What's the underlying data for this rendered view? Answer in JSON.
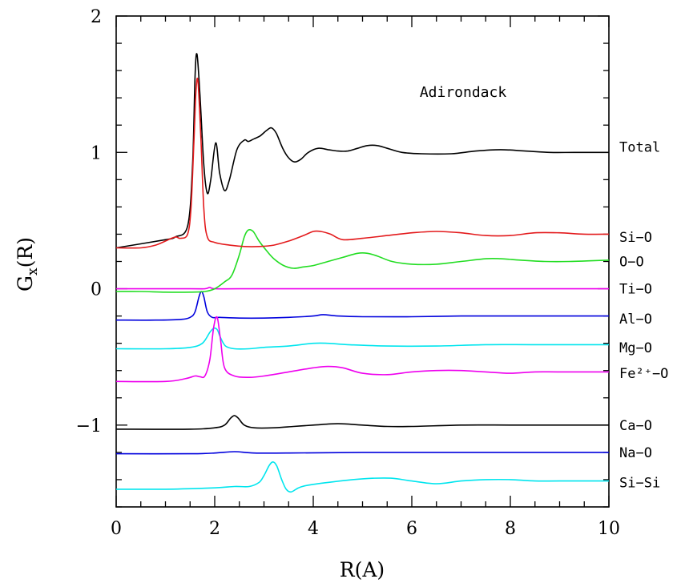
{
  "chart_data": {
    "type": "line",
    "title": "",
    "annotation": "Adirondack",
    "xlabel": "R(A)",
    "ylabel_main": "G",
    "ylabel_sub": "x",
    "ylabel_tail": "(R)",
    "xlim": [
      0,
      10
    ],
    "ylim": [
      -1.6,
      2.0
    ],
    "x_ticks": [
      0,
      2,
      4,
      6,
      8,
      10
    ],
    "y_ticks": [
      -1,
      0,
      1,
      2
    ],
    "x_tick_labels": [
      "0",
      "2",
      "4",
      "6",
      "8",
      "10"
    ],
    "y_tick_labels": [
      "−1",
      "0",
      "1",
      "2"
    ],
    "grid": false,
    "legend": "labels at right end of each curve",
    "series": [
      {
        "name": "Total",
        "color": "#000000",
        "label_y": 1.04,
        "x": [
          0,
          1.0,
          1.2,
          1.45,
          1.55,
          1.6,
          1.64,
          1.7,
          1.78,
          1.85,
          1.92,
          2.02,
          2.1,
          2.2,
          2.3,
          2.45,
          2.6,
          2.68,
          2.8,
          2.92,
          3.05,
          3.15,
          3.25,
          3.38,
          3.5,
          3.62,
          3.75,
          3.9,
          4.1,
          4.3,
          4.5,
          4.7,
          4.9,
          5.1,
          5.3,
          5.5,
          5.8,
          6.2,
          6.8,
          7.3,
          7.8,
          8.3,
          8.8,
          9.3,
          10
        ],
        "y": [
          0.3,
          0.36,
          0.38,
          0.46,
          0.9,
          1.55,
          1.72,
          1.42,
          0.9,
          0.7,
          0.8,
          1.07,
          0.85,
          0.72,
          0.8,
          1.02,
          1.09,
          1.08,
          1.1,
          1.12,
          1.16,
          1.18,
          1.14,
          1.03,
          0.96,
          0.93,
          0.95,
          1.0,
          1.03,
          1.02,
          1.01,
          1.01,
          1.03,
          1.05,
          1.05,
          1.03,
          1.0,
          0.99,
          0.99,
          1.01,
          1.02,
          1.01,
          1.0,
          1.0,
          1.0
        ]
      },
      {
        "name": "Si−O",
        "color": "#e31a1c",
        "label_y": 0.38,
        "x": [
          0,
          0.5,
          0.8,
          1.0,
          1.2,
          1.3,
          1.45,
          1.52,
          1.58,
          1.62,
          1.66,
          1.72,
          1.78,
          1.85,
          2.0,
          2.3,
          2.6,
          2.9,
          3.2,
          3.5,
          3.8,
          4.0,
          4.15,
          4.35,
          4.6,
          5.0,
          5.5,
          6.0,
          6.5,
          7.0,
          7.5,
          8.0,
          8.5,
          9.0,
          9.5,
          10
        ],
        "y": [
          0.3,
          0.3,
          0.32,
          0.35,
          0.38,
          0.37,
          0.4,
          0.6,
          1.1,
          1.45,
          1.52,
          1.1,
          0.58,
          0.38,
          0.34,
          0.32,
          0.31,
          0.31,
          0.32,
          0.35,
          0.39,
          0.42,
          0.42,
          0.4,
          0.36,
          0.37,
          0.39,
          0.41,
          0.42,
          0.41,
          0.39,
          0.39,
          0.41,
          0.41,
          0.4,
          0.4
        ]
      },
      {
        "name": "O−O",
        "color": "#22dd22",
        "label_y": 0.2,
        "x": [
          0,
          0.5,
          1.0,
          1.5,
          1.8,
          2.0,
          2.2,
          2.35,
          2.5,
          2.6,
          2.68,
          2.78,
          2.9,
          3.05,
          3.2,
          3.4,
          3.6,
          3.8,
          4.0,
          4.3,
          4.6,
          4.9,
          5.1,
          5.3,
          5.6,
          6.0,
          6.5,
          7.0,
          7.5,
          7.8,
          8.2,
          8.7,
          9.2,
          10
        ],
        "y": [
          -0.02,
          -0.02,
          -0.025,
          -0.025,
          -0.02,
          0.0,
          0.05,
          0.1,
          0.25,
          0.38,
          0.43,
          0.42,
          0.35,
          0.28,
          0.22,
          0.17,
          0.15,
          0.16,
          0.17,
          0.2,
          0.23,
          0.26,
          0.26,
          0.24,
          0.2,
          0.18,
          0.18,
          0.2,
          0.22,
          0.22,
          0.21,
          0.2,
          0.2,
          0.21
        ]
      },
      {
        "name": "Ti−O",
        "color": "#ee00ee",
        "label_y": 0.0,
        "x": [
          0,
          1.5,
          1.8,
          1.9,
          2.0,
          2.5,
          4.0,
          10
        ],
        "y": [
          0.0,
          0.0,
          0.0,
          0.01,
          0.0,
          0.0,
          0.0,
          0.0
        ]
      },
      {
        "name": "Al−O",
        "color": "#0000dd",
        "label_y": -0.22,
        "x": [
          0,
          0.8,
          1.3,
          1.5,
          1.6,
          1.68,
          1.73,
          1.78,
          1.85,
          1.95,
          2.1,
          2.5,
          3.0,
          3.5,
          4.0,
          4.2,
          4.5,
          5.0,
          6.0,
          7.0,
          8.0,
          9.0,
          10
        ],
        "y": [
          -0.23,
          -0.23,
          -0.225,
          -0.21,
          -0.17,
          -0.06,
          -0.02,
          -0.06,
          -0.17,
          -0.21,
          -0.21,
          -0.215,
          -0.215,
          -0.21,
          -0.2,
          -0.19,
          -0.2,
          -0.205,
          -0.205,
          -0.2,
          -0.2,
          -0.2,
          -0.2
        ]
      },
      {
        "name": "Mg−O",
        "color": "#00e5ee",
        "label_y": -0.43,
        "x": [
          0,
          1.0,
          1.5,
          1.75,
          1.9,
          1.98,
          2.05,
          2.12,
          2.22,
          2.4,
          2.7,
          3.0,
          3.5,
          4.0,
          4.3,
          4.7,
          5.5,
          6.5,
          7.5,
          8.5,
          10
        ],
        "y": [
          -0.44,
          -0.44,
          -0.43,
          -0.4,
          -0.32,
          -0.29,
          -0.3,
          -0.36,
          -0.42,
          -0.44,
          -0.44,
          -0.43,
          -0.42,
          -0.4,
          -0.4,
          -0.41,
          -0.42,
          -0.42,
          -0.41,
          -0.41,
          -0.41
        ]
      },
      {
        "name": "Fe²⁺−O",
        "color": "#ee00ee",
        "label_y": -0.62,
        "x": [
          0,
          1.0,
          1.4,
          1.6,
          1.7,
          1.8,
          1.9,
          1.98,
          2.05,
          2.12,
          2.2,
          2.4,
          2.7,
          3.0,
          3.5,
          4.0,
          4.3,
          4.6,
          5.0,
          5.5,
          6.0,
          6.5,
          7.0,
          7.5,
          8.0,
          8.5,
          9.0,
          10
        ],
        "y": [
          -0.68,
          -0.68,
          -0.66,
          -0.64,
          -0.645,
          -0.64,
          -0.52,
          -0.28,
          -0.21,
          -0.38,
          -0.58,
          -0.64,
          -0.65,
          -0.64,
          -0.61,
          -0.58,
          -0.57,
          -0.58,
          -0.62,
          -0.63,
          -0.61,
          -0.6,
          -0.6,
          -0.61,
          -0.62,
          -0.61,
          -0.61,
          -0.61
        ]
      },
      {
        "name": "Ca−O",
        "color": "#000000",
        "label_y": -1.0,
        "x": [
          0,
          1.5,
          2.0,
          2.2,
          2.32,
          2.4,
          2.48,
          2.6,
          2.8,
          3.2,
          3.6,
          4.0,
          4.5,
          5.0,
          5.5,
          6.0,
          7.0,
          8.0,
          9.0,
          10
        ],
        "y": [
          -1.03,
          -1.03,
          -1.02,
          -1.0,
          -0.95,
          -0.93,
          -0.95,
          -1.0,
          -1.02,
          -1.02,
          -1.01,
          -1.0,
          -0.99,
          -1.0,
          -1.01,
          -1.01,
          -1.0,
          -1.0,
          -1.0,
          -1.0
        ]
      },
      {
        "name": "Na−O",
        "color": "#0000dd",
        "label_y": -1.2,
        "x": [
          0,
          1.5,
          2.0,
          2.4,
          2.8,
          3.5,
          5.0,
          7.0,
          10
        ],
        "y": [
          -1.21,
          -1.21,
          -1.205,
          -1.195,
          -1.205,
          -1.205,
          -1.2,
          -1.2,
          -1.2
        ]
      },
      {
        "name": "Si−Si",
        "color": "#00e5ee",
        "label_y": -1.42,
        "x": [
          0,
          1.0,
          2.0,
          2.4,
          2.7,
          2.9,
          3.0,
          3.1,
          3.18,
          3.26,
          3.36,
          3.45,
          3.55,
          3.7,
          3.9,
          4.3,
          4.8,
          5.2,
          5.6,
          6.0,
          6.5,
          7.0,
          7.5,
          8.0,
          8.5,
          9.0,
          10
        ],
        "y": [
          -1.47,
          -1.47,
          -1.46,
          -1.45,
          -1.45,
          -1.42,
          -1.37,
          -1.3,
          -1.27,
          -1.3,
          -1.4,
          -1.47,
          -1.49,
          -1.46,
          -1.44,
          -1.42,
          -1.4,
          -1.39,
          -1.39,
          -1.41,
          -1.43,
          -1.41,
          -1.4,
          -1.4,
          -1.41,
          -1.41,
          -1.41
        ]
      }
    ]
  }
}
